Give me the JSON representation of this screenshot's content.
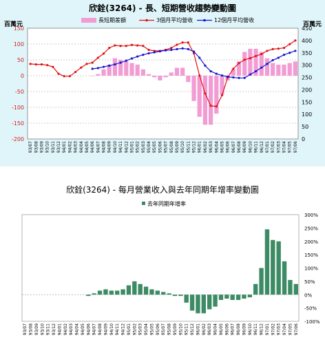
{
  "titles": {
    "top": "欣銓(3264) -  長、短期營收趨勢變動圖",
    "bottom": "欣銓(3264) -  每月營業收入與去年同期年增率變動圖"
  },
  "units": {
    "left": "百萬元",
    "right": "百萬元"
  },
  "colors": {
    "bar_diff": "#f29cd4",
    "line_3m": "#e01010",
    "line_12m": "#1414d0",
    "left_axis": "#d41c1c",
    "right_axis": "#000000",
    "bar_yoy": "#3d8b65",
    "grid": "#a0a0a0"
  },
  "chart_data": [
    {
      "type": "line",
      "title": "欣銓(3264) -  長、短期營收趨勢變動圖",
      "legend_position": "top",
      "x": [
        "93/07",
        "93/08",
        "93/09",
        "93/10",
        "93/11",
        "93/12",
        "94/01",
        "94/02",
        "94/03",
        "94/04",
        "94/05",
        "94/06",
        "94/07",
        "94/08",
        "94/09",
        "94/10",
        "94/11",
        "94/12",
        "95/01",
        "95/02",
        "95/03",
        "95/04",
        "95/05",
        "95/06",
        "95/07",
        "95/08",
        "95/09",
        "95/10",
        "95/11",
        "95/12",
        "96/01",
        "96/02",
        "96/03",
        "96/04",
        "96/05",
        "96/06",
        "96/07",
        "96/08",
        "96/09",
        "96/10",
        "96/11",
        "96/12",
        "97/01",
        "97/02",
        "97/03",
        "97/04",
        "97/05",
        "97/06"
      ],
      "y_left_label": "百萬元",
      "y_left_lim": [
        -200,
        150
      ],
      "y_left_ticks": [
        "150",
        "100",
        "50",
        "0",
        "-50",
        "-100",
        "-150",
        "-200"
      ],
      "y_right_label": "百萬元",
      "y_right_lim": [
        0,
        450
      ],
      "y_right_ticks": [
        "450",
        "400",
        "350",
        "300",
        "250",
        "200",
        "150",
        "100",
        "50",
        "0"
      ],
      "grid": true,
      "series": [
        {
          "name": "長短期差額",
          "kind": "bar",
          "axis": "left",
          "values": [
            null,
            null,
            null,
            null,
            null,
            null,
            null,
            null,
            null,
            null,
            null,
            0,
            5,
            20,
            35,
            55,
            50,
            45,
            40,
            35,
            20,
            5,
            -5,
            -15,
            -5,
            10,
            25,
            25,
            -20,
            -80,
            -130,
            -155,
            -155,
            -120,
            -60,
            -15,
            20,
            45,
            75,
            85,
            85,
            75,
            55,
            40,
            35,
            35,
            40,
            45
          ]
        },
        {
          "name": "3個月平均營收",
          "kind": "line",
          "axis": "right",
          "values": [
            305,
            303,
            303,
            300,
            293,
            265,
            255,
            255,
            272,
            290,
            305,
            310,
            330,
            347,
            370,
            380,
            378,
            378,
            382,
            380,
            378,
            362,
            358,
            358,
            362,
            370,
            383,
            392,
            392,
            348,
            258,
            185,
            135,
            132,
            178,
            250,
            285,
            308,
            322,
            328,
            337,
            345,
            358,
            365,
            367,
            370,
            385,
            400
          ]
        },
        {
          "name": "12個月平均營收",
          "kind": "line",
          "axis": "right",
          "values": [
            null,
            null,
            null,
            null,
            null,
            null,
            null,
            null,
            null,
            null,
            null,
            285,
            288,
            293,
            298,
            303,
            310,
            318,
            327,
            335,
            342,
            348,
            352,
            356,
            360,
            362,
            365,
            368,
            365,
            355,
            330,
            298,
            275,
            265,
            258,
            253,
            250,
            248,
            248,
            262,
            275,
            290,
            305,
            320,
            330,
            342,
            350,
            358
          ]
        }
      ]
    },
    {
      "type": "bar",
      "title": "欣銓(3264) -  每月營業收入與去年同期年增率變動圖",
      "legend_position": "top",
      "x": [
        "93/07",
        "93/08",
        "93/09",
        "93/10",
        "93/11",
        "93/12",
        "94/01",
        "94/02",
        "94/03",
        "94/04",
        "94/05",
        "94/06",
        "94/07",
        "94/08",
        "94/09",
        "94/10",
        "94/11",
        "94/12",
        "95/01",
        "95/02",
        "95/03",
        "95/04",
        "95/05",
        "95/06",
        "95/07",
        "95/08",
        "95/09",
        "95/10",
        "95/11",
        "95/12",
        "96/01",
        "96/02",
        "96/03",
        "96/04",
        "96/05",
        "96/06",
        "96/07",
        "96/08",
        "96/09",
        "96/10",
        "96/11",
        "96/12",
        "97/01",
        "97/02",
        "97/03",
        "97/04",
        "97/05",
        "97/06"
      ],
      "y_right_lim": [
        -100,
        300
      ],
      "y_right_ticks": [
        "300%",
        "250%",
        "200%",
        "150%",
        "100%",
        "50%",
        "0%",
        "-50%",
        "-100%"
      ],
      "grid": false,
      "series": [
        {
          "name": "去年同期年增率",
          "values": [
            null,
            null,
            null,
            null,
            null,
            null,
            null,
            null,
            null,
            null,
            null,
            -5,
            5,
            15,
            20,
            15,
            15,
            20,
            35,
            50,
            40,
            30,
            20,
            15,
            10,
            5,
            -5,
            -5,
            -30,
            -60,
            -70,
            -70,
            -55,
            -45,
            -20,
            -15,
            -20,
            -20,
            -15,
            -10,
            40,
            100,
            245,
            205,
            200,
            125,
            55,
            40
          ]
        }
      ]
    }
  ]
}
